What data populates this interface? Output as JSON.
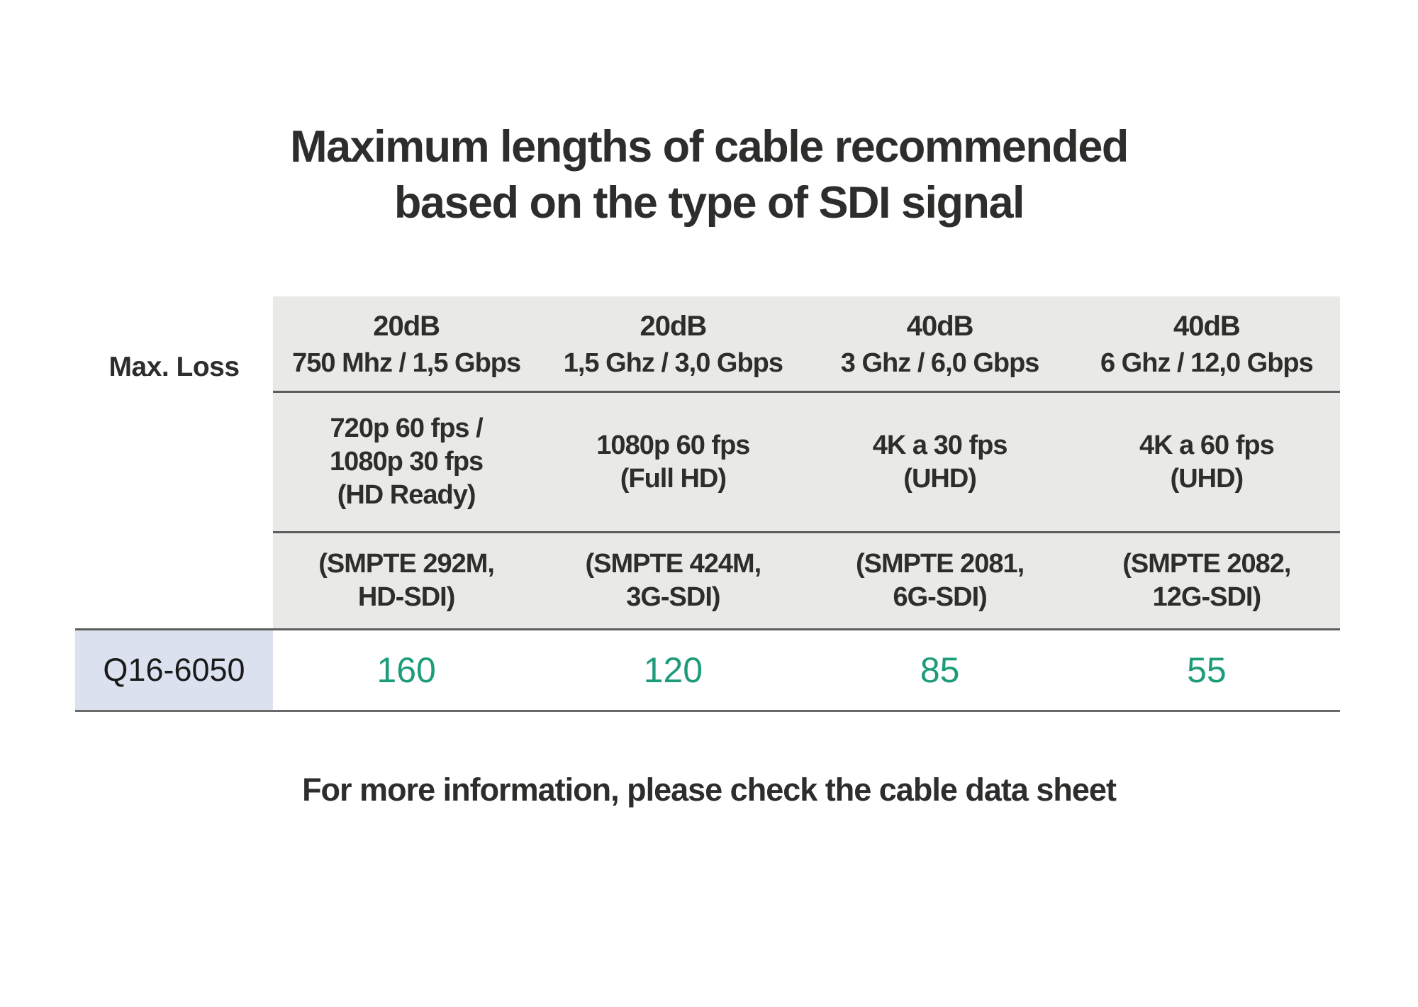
{
  "page": {
    "title_line1": "Maximum lengths of cable recommended",
    "title_line2": "based on the type of SDI signal",
    "footer_note": "For more information, please check the cable data sheet"
  },
  "table": {
    "corner_label": "Max. Loss",
    "columns": [
      {
        "max_loss": "20dB",
        "bandwidth": "750 Mhz / 1,5 Gbps",
        "video_format": "720p 60 fps /\n1080p 30 fps\n(HD Ready)",
        "smpte_standard": "(SMPTE 292M,\nHD-SDI)"
      },
      {
        "max_loss": "20dB",
        "bandwidth": "1,5 Ghz / 3,0 Gbps",
        "video_format": "1080p 60 fps\n(Full HD)",
        "smpte_standard": "(SMPTE 424M,\n3G-SDI)"
      },
      {
        "max_loss": "40dB",
        "bandwidth": "3 Ghz / 6,0 Gbps",
        "video_format": "4K a 30 fps\n(UHD)",
        "smpte_standard": "(SMPTE 2081,\n6G-SDI)"
      },
      {
        "max_loss": "40dB",
        "bandwidth": "6 Ghz / 12,0 Gbps",
        "video_format": "4K a 60 fps\n(UHD)",
        "smpte_standard": "(SMPTE 2082,\n12G-SDI)"
      }
    ],
    "rows": [
      {
        "product": "Q16-6050",
        "values": [
          "160",
          "120",
          "85",
          "55"
        ]
      }
    ]
  },
  "colors": {
    "text_dark": "#2d2d2c",
    "header_bg": "#e9e9e8",
    "product_cell_bg": "#dce1f0",
    "value_green": "#1d9c7c",
    "rule_gray": "#5d5d5d"
  },
  "chart_data": {
    "type": "table",
    "title": "Maximum lengths of cable recommended based on the type of SDI signal",
    "columns": [
      {
        "max_loss": "20dB",
        "bandwidth": "750 Mhz / 1,5 Gbps",
        "format": "720p 60 fps / 1080p 30 fps (HD Ready)",
        "standard": "SMPTE 292M, HD-SDI"
      },
      {
        "max_loss": "20dB",
        "bandwidth": "1,5 Ghz / 3,0 Gbps",
        "format": "1080p 60 fps (Full HD)",
        "standard": "SMPTE 424M, 3G-SDI"
      },
      {
        "max_loss": "40dB",
        "bandwidth": "3 Ghz / 6,0 Gbps",
        "format": "4K a 30 fps (UHD)",
        "standard": "SMPTE 2081, 6G-SDI"
      },
      {
        "max_loss": "40dB",
        "bandwidth": "6 Ghz / 12,0 Gbps",
        "format": "4K a 60 fps (UHD)",
        "standard": "SMPTE 2082, 12G-SDI"
      }
    ],
    "rows": [
      {
        "label": "Q16-6050",
        "values": [
          160,
          120,
          85,
          55
        ]
      }
    ],
    "note": "For more information, please check the cable data sheet"
  }
}
